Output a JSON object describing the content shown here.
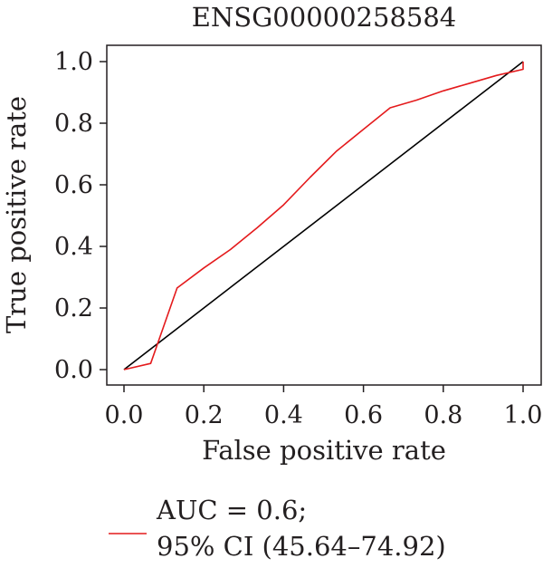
{
  "chart_data": {
    "type": "line",
    "title": "ENSG00000258584",
    "xlabel": "False positive rate",
    "ylabel": "True positive rate",
    "xlim": [
      0,
      1
    ],
    "ylim": [
      0,
      1
    ],
    "xticks": [
      "0.0",
      "0.2",
      "0.4",
      "0.6",
      "0.8",
      "1.0"
    ],
    "yticks": [
      "0.0",
      "0.2",
      "0.4",
      "0.6",
      "0.8",
      "1.0"
    ],
    "grid": false,
    "legend_position": "bottom-left",
    "series": [
      {
        "name": "AUC = 0.6;",
        "name_line2": "95% CI (45.64–74.92)",
        "color": "#e41a1c",
        "x": [
          0.0,
          0.067,
          0.133,
          0.2,
          0.267,
          0.333,
          0.4,
          0.467,
          0.533,
          0.6,
          0.667,
          0.733,
          0.8,
          0.867,
          0.933,
          1.0,
          1.0
        ],
        "y": [
          0.0,
          0.02,
          0.265,
          0.33,
          0.39,
          0.46,
          0.535,
          0.625,
          0.71,
          0.78,
          0.85,
          0.875,
          0.905,
          0.93,
          0.955,
          0.975,
          1.0
        ]
      },
      {
        "name": "",
        "color": "#000000",
        "x": [
          0.0,
          1.0
        ],
        "y": [
          0.0,
          1.0
        ]
      }
    ]
  }
}
